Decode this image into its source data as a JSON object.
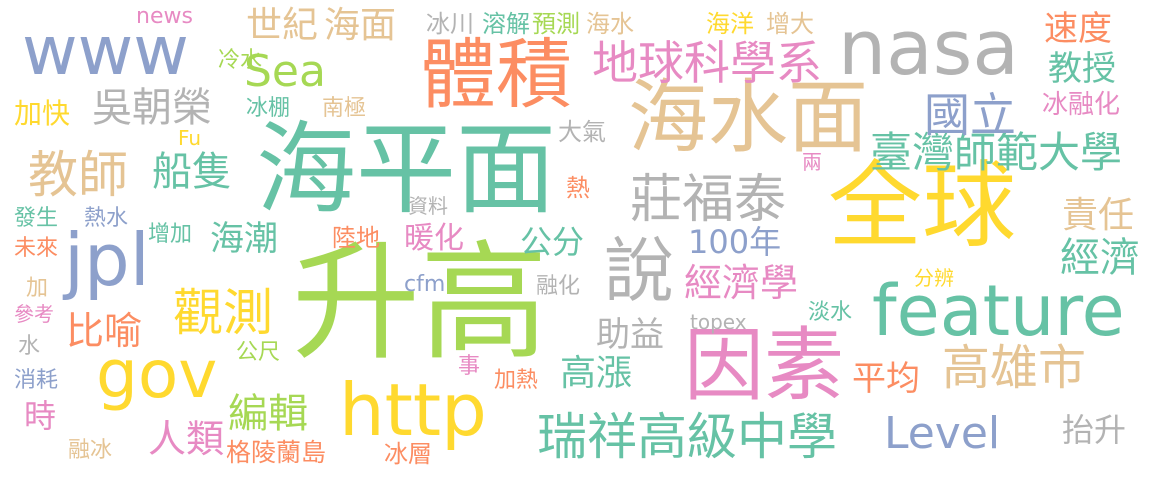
{
  "words": [
    {
      "text": "升高",
      "color": "#a6d854",
      "orientation": "horizontal"
    },
    {
      "text": "海平面",
      "color": "#66c2a5",
      "orientation": "horizontal"
    },
    {
      "text": "全球",
      "color": "#ffd92f",
      "orientation": "horizontal"
    },
    {
      "text": "海水面",
      "color": "#e5c494",
      "orientation": "horizontal"
    },
    {
      "text": "因素",
      "color": "#e78ac3",
      "orientation": "horizontal"
    },
    {
      "text": "體積",
      "color": "#fc8d62",
      "orientation": "horizontal"
    },
    {
      "text": "nasa",
      "color": "#b3b3b3",
      "orientation": "horizontal"
    },
    {
      "text": "www",
      "color": "#8da0cb",
      "orientation": "horizontal"
    },
    {
      "text": "http",
      "color": "#ffd92f",
      "orientation": "horizontal"
    },
    {
      "text": "feature",
      "color": "#66c2a5",
      "orientation": "horizontal"
    },
    {
      "text": "jpl",
      "color": "#8da0cb",
      "orientation": "horizontal"
    },
    {
      "text": "gov",
      "color": "#ffd92f",
      "orientation": "horizontal"
    },
    {
      "text": "說",
      "color": "#b3b3b3",
      "orientation": "horizontal"
    },
    {
      "text": "瑞祥高級中學",
      "color": "#66c2a5",
      "orientation": "horizontal"
    },
    {
      "text": "高雄市",
      "color": "#e5c494",
      "orientation": "horizontal"
    },
    {
      "text": "莊福泰",
      "color": "#b3b3b3",
      "orientation": "horizontal"
    },
    {
      "text": "地球科學系",
      "color": "#e78ac3",
      "orientation": "horizontal"
    },
    {
      "text": "Level",
      "color": "#8da0cb",
      "orientation": "horizontal"
    },
    {
      "text": "臺灣師範大學",
      "color": "#66c2a5",
      "orientation": "horizontal"
    },
    {
      "text": "觀測",
      "color": "#ffd92f",
      "orientation": "horizontal"
    },
    {
      "text": "教師",
      "color": "#e5c494",
      "orientation": "horizontal"
    },
    {
      "text": "國立",
      "color": "#8da0cb",
      "orientation": "horizontal"
    },
    {
      "text": "Sea",
      "color": "#a6d854",
      "orientation": "horizontal"
    },
    {
      "text": "經濟學",
      "color": "#e78ac3",
      "orientation": "horizontal"
    },
    {
      "text": "船隻",
      "color": "#66c2a5",
      "orientation": "horizontal"
    },
    {
      "text": "吳朝榮",
      "color": "#b3b3b3",
      "orientation": "horizontal"
    },
    {
      "text": "世紀",
      "color": "#e5c494",
      "orientation": "horizontal"
    },
    {
      "text": "海面",
      "color": "#e5c494",
      "orientation": "horizontal"
    },
    {
      "text": "編輯",
      "color": "#a6d854",
      "orientation": "horizontal"
    },
    {
      "text": "比喻",
      "color": "#fc8d62",
      "orientation": "horizontal"
    },
    {
      "text": "人類",
      "color": "#e78ac3",
      "orientation": "horizontal"
    },
    {
      "text": "高漲",
      "color": "#66c2a5",
      "orientation": "horizontal"
    },
    {
      "text": "平均",
      "color": "#fc8d62",
      "orientation": "horizontal"
    },
    {
      "text": "經濟",
      "color": "#66c2a5",
      "orientation": "horizontal"
    },
    {
      "text": "責任",
      "color": "#e5c494",
      "orientation": "horizontal"
    },
    {
      "text": "教授",
      "color": "#66c2a5",
      "orientation": "horizontal"
    },
    {
      "text": "速度",
      "color": "#fc8d62",
      "orientation": "horizontal"
    },
    {
      "text": "助益",
      "color": "#b3b3b3",
      "orientation": "horizontal"
    },
    {
      "text": "海潮",
      "color": "#66c2a5",
      "orientation": "horizontal"
    },
    {
      "text": "暖化",
      "color": "#e78ac3",
      "orientation": "horizontal"
    },
    {
      "text": "公分",
      "color": "#66c2a5",
      "orientation": "horizontal"
    },
    {
      "text": "100年",
      "color": "#8da0cb",
      "orientation": "horizontal"
    },
    {
      "text": "抬升",
      "color": "#b3b3b3",
      "orientation": "horizontal"
    },
    {
      "text": "時",
      "color": "#e78ac3",
      "orientation": "horizontal"
    },
    {
      "text": "格陵蘭島",
      "color": "#fc8d62",
      "orientation": "horizontal"
    },
    {
      "text": "冰層",
      "color": "#fc8d62",
      "orientation": "horizontal"
    },
    {
      "text": "冰川",
      "color": "#b3b3b3",
      "orientation": "horizontal"
    },
    {
      "text": "溶解",
      "color": "#66c2a5",
      "orientation": "horizontal"
    },
    {
      "text": "預測",
      "color": "#a6d854",
      "orientation": "horizontal"
    },
    {
      "text": "海水",
      "color": "#e5c494",
      "orientation": "horizontal"
    },
    {
      "text": "海洋",
      "color": "#ffd92f",
      "orientation": "horizontal"
    },
    {
      "text": "增大",
      "color": "#e5c494",
      "orientation": "horizontal"
    },
    {
      "text": "news",
      "color": "#e78ac3",
      "orientation": "horizontal"
    },
    {
      "text": "冷水",
      "color": "#a6d854",
      "orientation": "horizontal"
    },
    {
      "text": "加快",
      "color": "#ffd92f",
      "orientation": "horizontal"
    },
    {
      "text": "冰棚",
      "color": "#66c2a5",
      "orientation": "horizontal"
    },
    {
      "text": "南極",
      "color": "#e5c494",
      "orientation": "horizontal"
    },
    {
      "text": "冰融化",
      "color": "#e78ac3",
      "orientation": "horizontal"
    },
    {
      "text": "Fu",
      "color": "#ffd92f",
      "orientation": "horizontal"
    },
    {
      "text": "大氣",
      "color": "#b3b3b3",
      "orientation": "horizontal"
    },
    {
      "text": "熱",
      "color": "#fc8d62",
      "orientation": "horizontal"
    },
    {
      "text": "兩",
      "color": "#e78ac3",
      "orientation": "horizontal"
    },
    {
      "text": "發生",
      "color": "#66c2a5",
      "orientation": "horizontal"
    },
    {
      "text": "熱水",
      "color": "#8da0cb",
      "orientation": "horizontal"
    },
    {
      "text": "資料",
      "color": "#b3b3b3",
      "orientation": "horizontal"
    },
    {
      "text": "增加",
      "color": "#66c2a5",
      "orientation": "horizontal"
    },
    {
      "text": "未來",
      "color": "#fc8d62",
      "orientation": "horizontal"
    },
    {
      "text": "陸地",
      "color": "#fc8d62",
      "orientation": "horizontal"
    },
    {
      "text": "加",
      "color": "#e5c494",
      "orientation": "horizontal"
    },
    {
      "text": "cfm",
      "color": "#8da0cb",
      "orientation": "horizontal"
    },
    {
      "text": "融化",
      "color": "#b3b3b3",
      "orientation": "horizontal"
    },
    {
      "text": "分辨",
      "color": "#ffd92f",
      "orientation": "horizontal"
    },
    {
      "text": "參考",
      "color": "#e78ac3",
      "orientation": "horizontal"
    },
    {
      "text": "topex",
      "color": "#b3b3b3",
      "orientation": "horizontal"
    },
    {
      "text": "淡水",
      "color": "#66c2a5",
      "orientation": "horizontal"
    },
    {
      "text": "水",
      "color": "#b3b3b3",
      "orientation": "horizontal"
    },
    {
      "text": "公尺",
      "color": "#a6d854",
      "orientation": "horizontal"
    },
    {
      "text": "消耗",
      "color": "#8da0cb",
      "orientation": "horizontal"
    },
    {
      "text": "事",
      "color": "#e78ac3",
      "orientation": "horizontal"
    },
    {
      "text": "加熱",
      "color": "#fc8d62",
      "orientation": "horizontal"
    },
    {
      "text": "融冰",
      "color": "#e5c494",
      "orientation": "horizontal"
    }
  ]
}
